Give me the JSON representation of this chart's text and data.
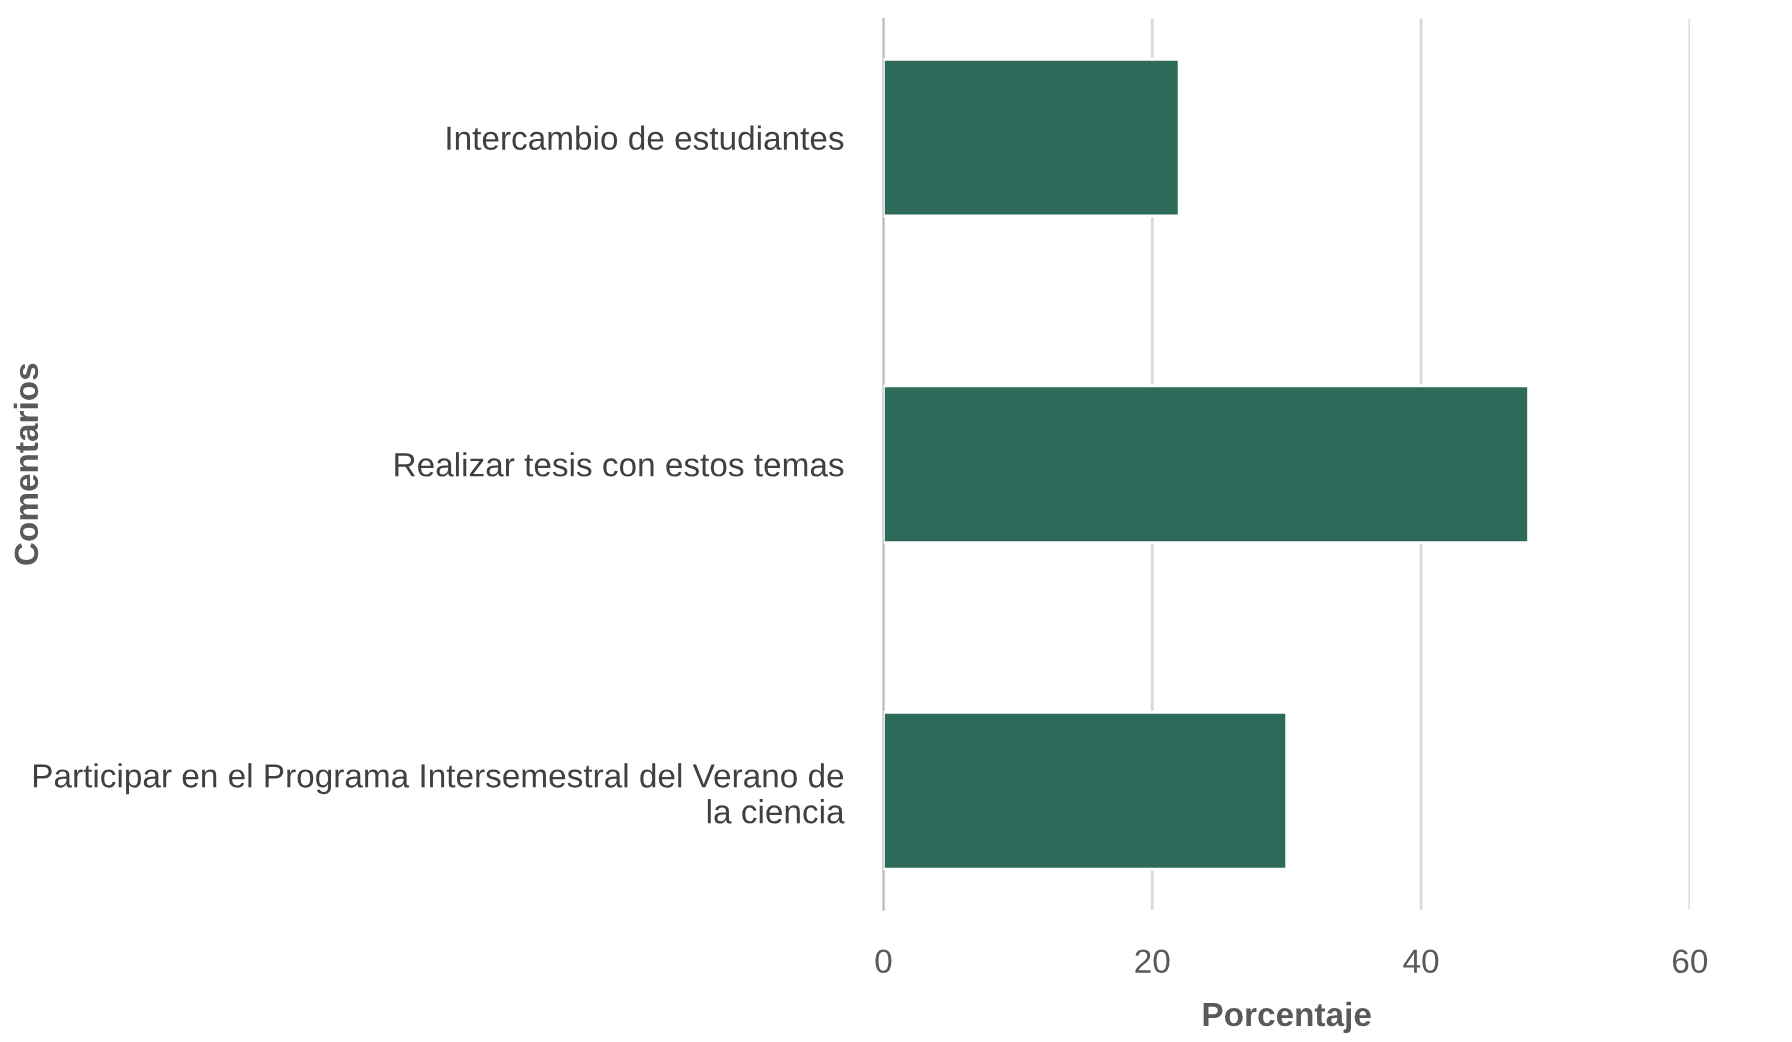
{
  "chart_data": {
    "type": "bar",
    "orientation": "horizontal",
    "categories": [
      "Intercambio de estudiantes",
      "Realizar tesis con estos temas",
      "Participar en el Programa Intersemestral del Verano de la ciencia"
    ],
    "values": [
      22,
      48,
      30
    ],
    "color": "#2d6a5a",
    "xlabel": "Porcentaje",
    "ylabel": "Comentarios",
    "xlim": [
      0,
      60
    ],
    "xticks": [
      0,
      20,
      40,
      60
    ],
    "grid": "x",
    "legend": false
  }
}
